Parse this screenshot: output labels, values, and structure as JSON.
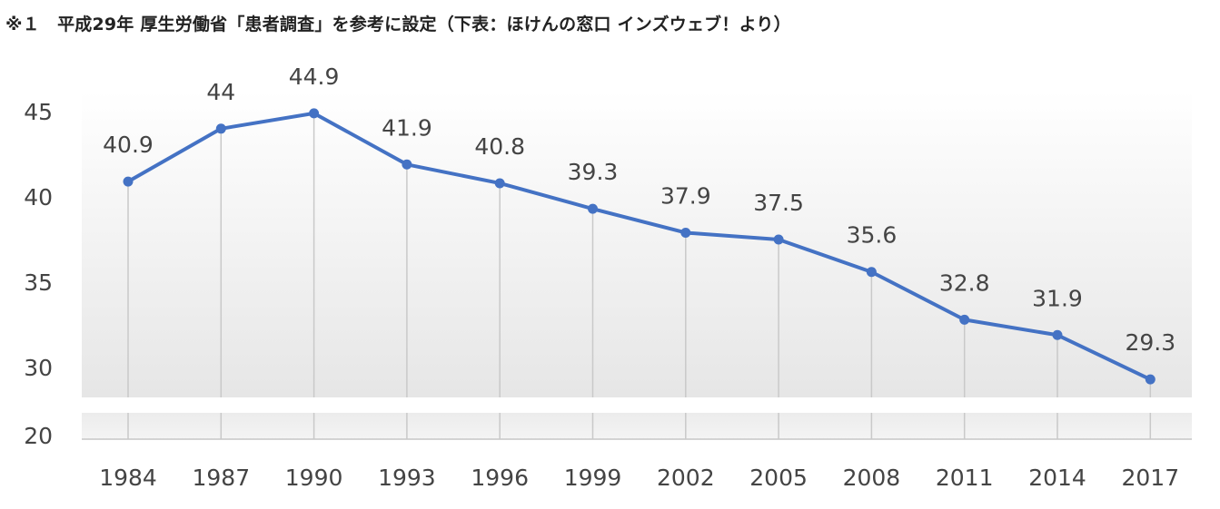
{
  "note": "※１　平成29年 厚生労働省「患者調査」を参考に設定（下表：ほけんの窓口 インズウェブ！より）",
  "chart_data": {
    "type": "line",
    "title": "",
    "xlabel": "",
    "ylabel": "",
    "categories": [
      "1984",
      "1987",
      "1990",
      "1993",
      "1996",
      "1999",
      "2002",
      "2005",
      "2008",
      "2011",
      "2014",
      "2017"
    ],
    "series": [
      {
        "values": [
          40.9,
          44,
          44.9,
          41.9,
          40.8,
          39.3,
          37.9,
          37.5,
          35.6,
          32.8,
          31.9,
          29.3
        ],
        "labels": [
          "40.9",
          "44",
          "44.9",
          "41.9",
          "40.8",
          "39.3",
          "37.9",
          "37.5",
          "35.6",
          "32.8",
          "31.9",
          "29.3"
        ]
      }
    ],
    "yticks": [
      "45",
      "40",
      "35",
      "30",
      "20"
    ],
    "ylim_upper": [
      28,
      46
    ],
    "axis_break": "between 30 and 20",
    "grid": "vertical",
    "line_color": "#4472C4",
    "legend": "none"
  }
}
